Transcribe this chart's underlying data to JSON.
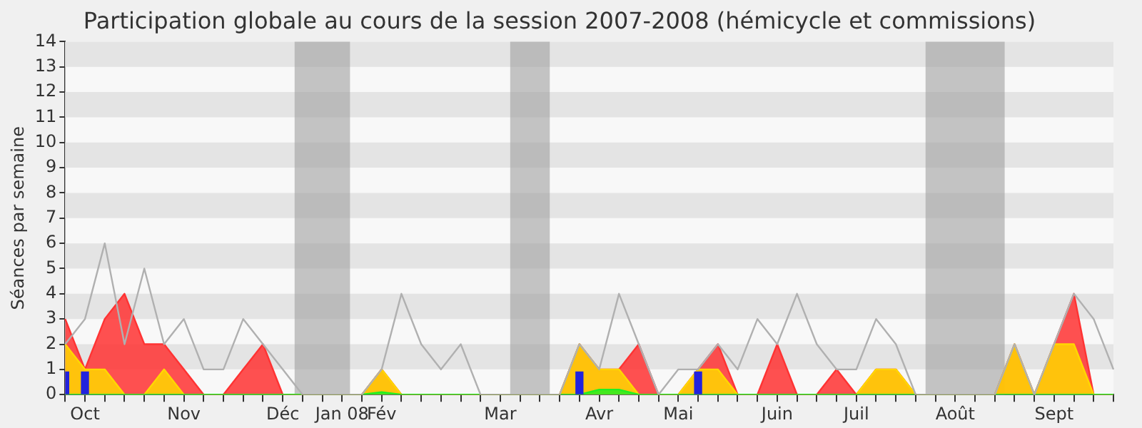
{
  "chart_data": {
    "type": "area",
    "title": "Participation globale au cours de la session 2007-2008 (hémicycle et commissions)",
    "ylabel": "Séances par semaine",
    "categories": [
      null,
      "Oct",
      null,
      null,
      null,
      null,
      "Nov",
      null,
      null,
      null,
      null,
      "Déc",
      null,
      null,
      "Jan 08",
      null,
      "Fév",
      null,
      null,
      null,
      null,
      null,
      "Mar",
      null,
      null,
      null,
      null,
      "Avr",
      null,
      null,
      null,
      "Mai",
      null,
      null,
      null,
      null,
      "Juin",
      null,
      null,
      null,
      "Juil",
      null,
      null,
      null,
      null,
      "Août",
      null,
      null,
      null,
      null,
      "Sept",
      null,
      null,
      null
    ],
    "ylim": [
      0,
      14
    ],
    "yticks": [
      0,
      1,
      2,
      3,
      4,
      5,
      6,
      7,
      8,
      9,
      10,
      11,
      12,
      13,
      14
    ],
    "legend": false,
    "marker": "none",
    "series": [
      {
        "type": "line",
        "color": "#b0b0b0",
        "values": [
          2,
          3,
          6,
          2,
          5,
          2,
          3,
          1,
          1,
          3,
          2,
          1,
          0,
          0,
          0,
          0,
          1,
          4,
          2,
          1,
          2,
          0,
          0,
          0,
          0,
          0,
          2,
          1,
          4,
          2,
          0,
          1,
          1,
          2,
          1,
          3,
          2,
          4,
          2,
          1,
          1,
          3,
          2,
          0,
          0,
          0,
          0,
          0,
          2,
          0,
          2,
          4,
          3,
          1
        ]
      },
      {
        "color": "#ff3333",
        "values": [
          3,
          1,
          3,
          4,
          2,
          2,
          1,
          0,
          0,
          1,
          2,
          0,
          0,
          0,
          0,
          0,
          1,
          0,
          0,
          0,
          0,
          0,
          0,
          0,
          0,
          0,
          2,
          1,
          1,
          2,
          0,
          0,
          1,
          2,
          0,
          0,
          2,
          0,
          0,
          1,
          0,
          1,
          1,
          0,
          0,
          0,
          0,
          0,
          2,
          0,
          2,
          4,
          0,
          0
        ]
      },
      {
        "color": "#ffd700",
        "values": [
          2,
          1,
          1,
          0,
          0,
          1,
          0,
          0,
          0,
          0,
          0,
          0,
          0,
          0,
          0,
          0,
          1,
          0,
          0,
          0,
          0,
          0,
          0,
          0,
          0,
          0,
          2,
          1,
          1,
          0,
          0,
          0,
          1,
          1,
          0,
          0,
          0,
          0,
          0,
          0,
          0,
          1,
          1,
          0,
          0,
          0,
          0,
          0,
          2,
          0,
          2,
          2,
          0,
          0
        ]
      },
      {
        "color": "#22ee22",
        "values": [
          0,
          0,
          0,
          0,
          0,
          0,
          0,
          0,
          0,
          0,
          0,
          0,
          0,
          0,
          0,
          0,
          0.1,
          0,
          0,
          0,
          0,
          0,
          0,
          0,
          0,
          0,
          0,
          0.2,
          0.2,
          0,
          0,
          0,
          0,
          0,
          0,
          0,
          0,
          0,
          0,
          0,
          0,
          0,
          0,
          0,
          0,
          0,
          0,
          0,
          0,
          0,
          0,
          0,
          0,
          0
        ]
      },
      {
        "type": "bar",
        "color": "#2222dd",
        "values": [
          0.9,
          0.9,
          null,
          null,
          null,
          null,
          null,
          null,
          null,
          null,
          null,
          null,
          null,
          null,
          null,
          null,
          null,
          null,
          null,
          null,
          null,
          null,
          null,
          null,
          null,
          null,
          0.9,
          null,
          null,
          null,
          null,
          null,
          0.9,
          null,
          null,
          null,
          null,
          null,
          null,
          null,
          null,
          null,
          null,
          null,
          null,
          null,
          null,
          null,
          null,
          null,
          null,
          null,
          null,
          null
        ]
      }
    ]
  }
}
